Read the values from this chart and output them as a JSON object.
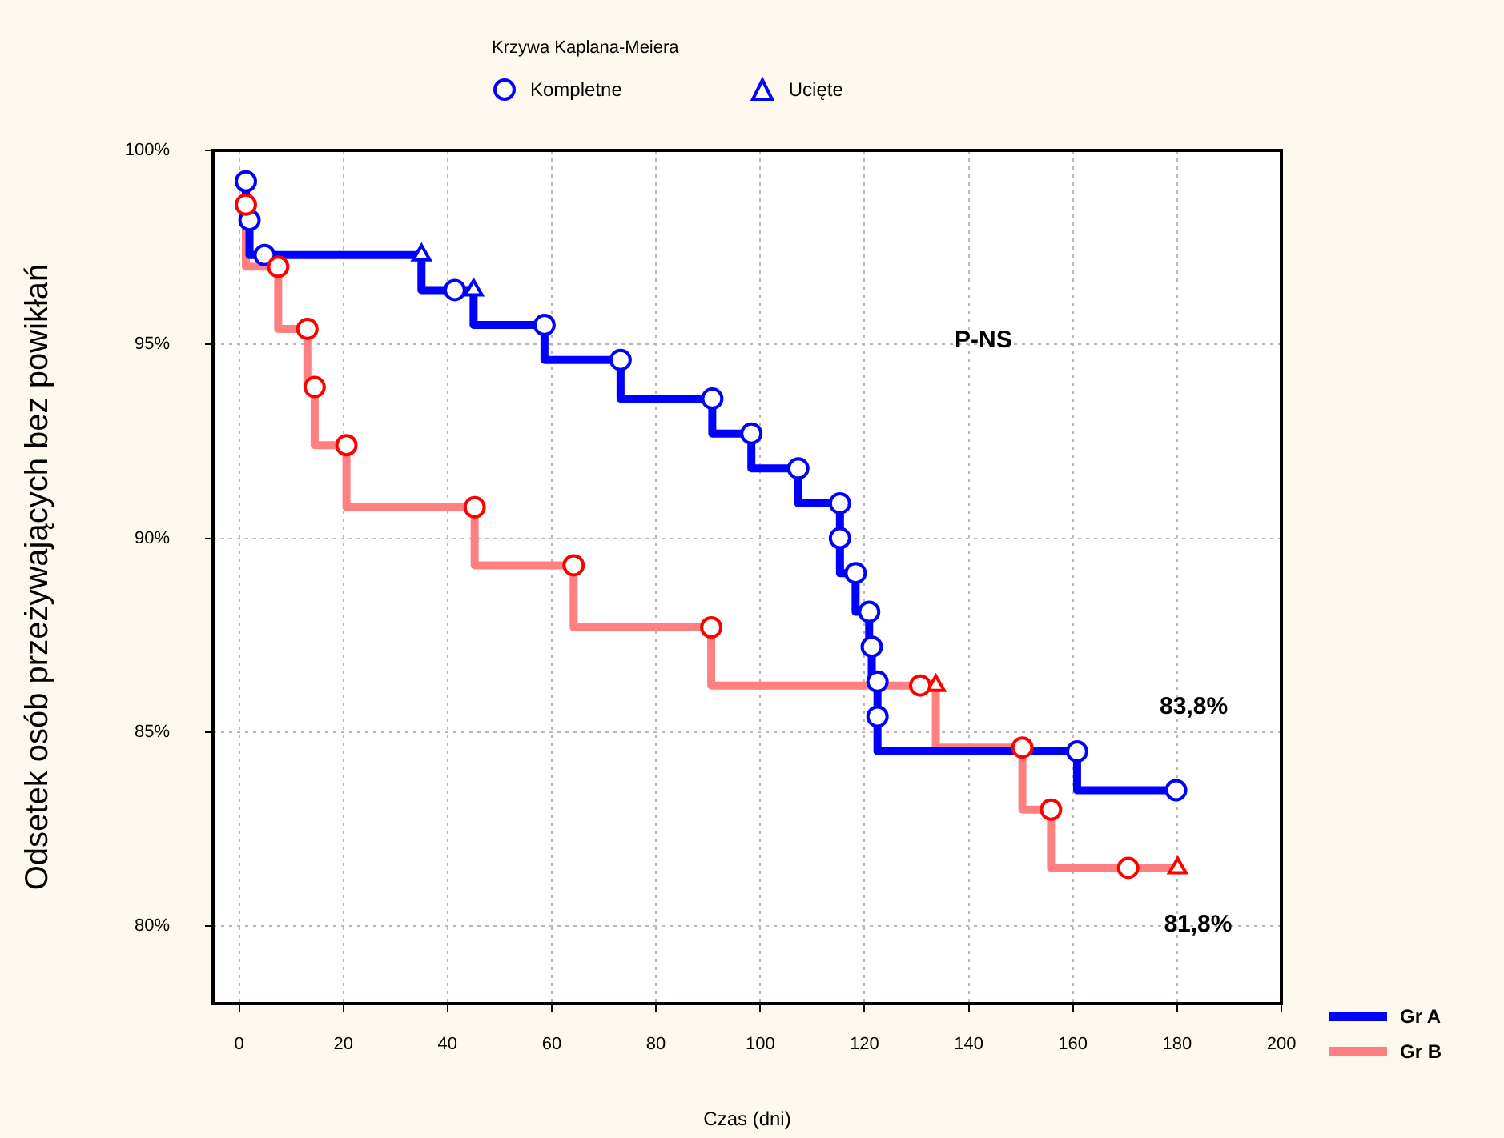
{
  "chart_data": {
    "type": "step",
    "xlabel": "Czas (dni)",
    "ylabel": "Odsetek osób przeżywających bez powikłań",
    "legend_title": "Krzywa Kaplana-Meiera",
    "legend": "top",
    "grid": true,
    "xlim": [
      -5,
      200
    ],
    "xticks": [
      0,
      20,
      40,
      60,
      80,
      100,
      120,
      140,
      160,
      180,
      200
    ],
    "ylim": [
      78,
      100
    ],
    "yticks": [
      {
        "value": 80,
        "label": "80%"
      },
      {
        "value": 85,
        "label": "85%"
      },
      {
        "value": 90,
        "label": "90%"
      },
      {
        "value": 95,
        "label": "95%"
      },
      {
        "value": 100,
        "label": "100%"
      }
    ],
    "series": [
      {
        "name": "Gr A",
        "color": "#0000ff",
        "marker": "none",
        "x": [
          1.3,
          2,
          4.9,
          35,
          41.4,
          45,
          58.6,
          73.2,
          90.8,
          98.3,
          107.3,
          115.3,
          115.3,
          118.3,
          120.9,
          121.4,
          122.5,
          122.5,
          160.8,
          179.8
        ],
        "values": [
          99.2,
          98.2,
          97.3,
          97.3,
          96.4,
          96.4,
          95.5,
          94.6,
          93.6,
          92.7,
          91.8,
          90.9,
          90.0,
          89.1,
          88.1,
          87.2,
          86.3,
          85.4,
          84.5,
          83.5
        ]
      },
      {
        "name": "Gr B",
        "color": "#ff8080",
        "marker": "none",
        "x": [
          1.3,
          7.5,
          13.1,
          14.5,
          20.6,
          45.2,
          64.2,
          90.6,
          130.7,
          133.7,
          150.3,
          155.8,
          170.6,
          180.1
        ],
        "values": [
          98.6,
          97.0,
          95.4,
          93.9,
          92.4,
          90.8,
          89.3,
          87.7,
          86.2,
          86.2,
          84.6,
          83.0,
          81.5,
          81.5
        ]
      },
      {
        "name": "Kompletne",
        "type": "scatter",
        "marker": "circle",
        "x": [
          1.3,
          2,
          4.9,
          41.4,
          58.6,
          73.2,
          90.8,
          98.3,
          107.3,
          115.3,
          115.3,
          118.3,
          120.9,
          121.4,
          122.5,
          122.5,
          160.8,
          179.8,
          1.3,
          7.5,
          13.1,
          14.5,
          20.6,
          45.2,
          64.2,
          90.6,
          130.7,
          150.3,
          155.8,
          170.6
        ],
        "values": [
          99.2,
          98.2,
          97.3,
          96.4,
          95.5,
          94.6,
          93.6,
          92.7,
          91.8,
          90.9,
          90.0,
          89.1,
          88.1,
          87.2,
          86.3,
          85.4,
          84.5,
          83.5,
          98.6,
          97.0,
          95.4,
          93.9,
          92.4,
          90.8,
          89.3,
          87.7,
          86.2,
          84.6,
          83.0,
          81.5
        ],
        "colors": [
          "#0000ff",
          "#0000ff",
          "#0000ff",
          "#0000ff",
          "#0000ff",
          "#0000ff",
          "#0000ff",
          "#0000ff",
          "#0000ff",
          "#0000ff",
          "#0000ff",
          "#0000ff",
          "#0000ff",
          "#0000ff",
          "#0000ff",
          "#0000ff",
          "#0000ff",
          "#0000ff",
          "#ff0000",
          "#ff0000",
          "#ff0000",
          "#ff0000",
          "#ff0000",
          "#ff0000",
          "#ff0000",
          "#ff0000",
          "#ff0000",
          "#ff0000",
          "#ff0000",
          "#ff0000"
        ]
      },
      {
        "name": "Ucięte",
        "type": "scatter",
        "marker": "triangle",
        "x": [
          35,
          45,
          133.7,
          180.1
        ],
        "values": [
          97.3,
          96.4,
          86.2,
          81.5
        ],
        "colors": [
          "#0000ff",
          "#0000ff",
          "#ff0000",
          "#ff0000"
        ]
      }
    ],
    "annotations": [
      "P-NS",
      "83,8%",
      "81,8%"
    ]
  }
}
